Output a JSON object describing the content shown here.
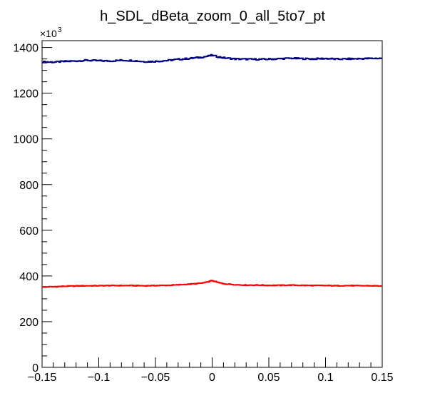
{
  "chart_data": {
    "type": "line",
    "title": "h_SDL_dBeta_zoom_0_all_5to7_pt",
    "xlabel": "",
    "ylabel": "",
    "y_multiplier_label": "×10",
    "y_multiplier_exp": "3",
    "xlim": [
      -0.15,
      0.15
    ],
    "ylim": [
      0,
      1430
    ],
    "x_ticks": [
      -0.15,
      -0.1,
      -0.05,
      0,
      0.05,
      0.1,
      0.15
    ],
    "x_tick_labels": [
      "−0.15",
      "−0.1",
      "−0.05",
      "0",
      "0.05",
      "0.1",
      "0.15"
    ],
    "y_ticks": [
      0,
      200,
      400,
      600,
      800,
      1000,
      1200,
      1400
    ],
    "y_tick_labels": [
      "0",
      "200",
      "400",
      "600",
      "800",
      "1000",
      "1200",
      "1400"
    ],
    "grid": false,
    "series": [
      {
        "color": "#000080",
        "x": [
          -0.15,
          -0.14,
          -0.13,
          -0.12,
          -0.11,
          -0.1,
          -0.09,
          -0.08,
          -0.07,
          -0.06,
          -0.05,
          -0.04,
          -0.03,
          -0.02,
          -0.01,
          -0.005,
          0,
          0.005,
          0.01,
          0.02,
          0.03,
          0.04,
          0.05,
          0.06,
          0.07,
          0.08,
          0.09,
          0.1,
          0.11,
          0.12,
          0.13,
          0.14,
          0.15
        ],
        "values": [
          1337,
          1336,
          1339,
          1341,
          1344,
          1342,
          1341,
          1344,
          1343,
          1338,
          1339,
          1343,
          1348,
          1352,
          1357,
          1361,
          1366,
          1360,
          1355,
          1350,
          1349,
          1348,
          1349,
          1351,
          1353,
          1351,
          1350,
          1352,
          1349,
          1350,
          1351,
          1352,
          1353
        ]
      },
      {
        "color": "#ff0000",
        "x": [
          -0.15,
          -0.14,
          -0.13,
          -0.12,
          -0.11,
          -0.1,
          -0.09,
          -0.08,
          -0.07,
          -0.06,
          -0.05,
          -0.04,
          -0.03,
          -0.02,
          -0.01,
          -0.005,
          0,
          0.005,
          0.01,
          0.02,
          0.03,
          0.04,
          0.05,
          0.06,
          0.07,
          0.08,
          0.09,
          0.1,
          0.11,
          0.12,
          0.13,
          0.14,
          0.15
        ],
        "values": [
          352,
          353,
          355,
          356,
          357,
          357,
          358,
          358,
          358,
          357,
          358,
          359,
          361,
          364,
          368,
          372,
          380,
          372,
          366,
          362,
          360,
          360,
          359,
          359,
          360,
          359,
          358,
          358,
          357,
          358,
          357,
          357,
          356
        ]
      }
    ]
  }
}
